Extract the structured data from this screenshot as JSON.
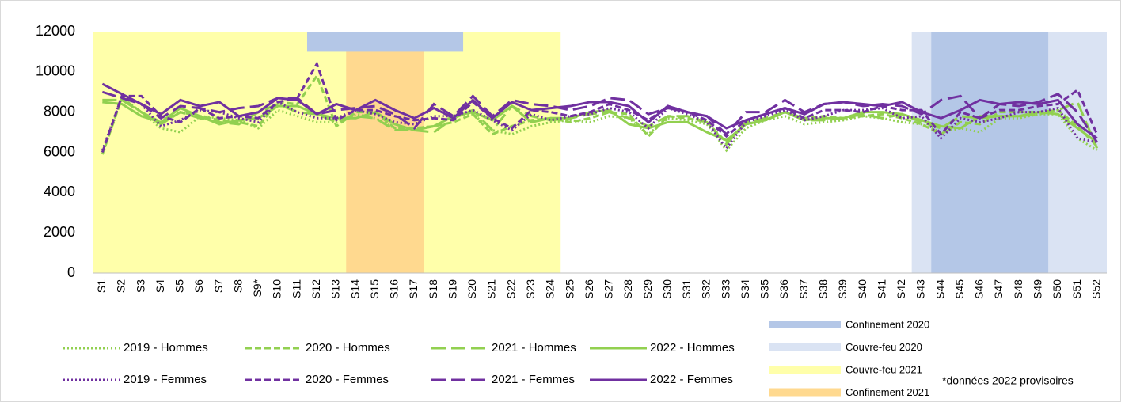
{
  "chart_data": {
    "type": "line",
    "categories": [
      "S1",
      "S2",
      "S3",
      "S4",
      "S5",
      "S6",
      "S7",
      "S8",
      "S9*",
      "S10",
      "S11",
      "S12",
      "S13",
      "S14",
      "S15",
      "S16",
      "S17",
      "S18",
      "S19",
      "S20",
      "S21",
      "S22",
      "S23",
      "S24",
      "S25",
      "S26",
      "S27",
      "S28",
      "S29",
      "S30",
      "S31",
      "S32",
      "S33",
      "S34",
      "S35",
      "S36",
      "S37",
      "S38",
      "S39",
      "S40",
      "S41",
      "S42",
      "S43",
      "S44",
      "S45",
      "S46",
      "S47",
      "S48",
      "S49",
      "S50",
      "S51",
      "S52"
    ],
    "ylim": [
      0,
      12000
    ],
    "yticks": [
      0,
      2000,
      4000,
      6000,
      8000,
      10000,
      12000
    ],
    "grid": false,
    "series": [
      {
        "name": "2019 - Hommes",
        "color": "#92d050",
        "style": "dotted",
        "values": [
          5900,
          8700,
          8000,
          7200,
          7000,
          7800,
          7700,
          7600,
          7200,
          8100,
          7800,
          7500,
          7500,
          7900,
          7700,
          7200,
          7200,
          7300,
          7800,
          7900,
          7100,
          6900,
          7300,
          7500,
          7600,
          7500,
          7800,
          7700,
          6900,
          7700,
          7600,
          7400,
          6100,
          7200,
          7600,
          7800,
          7400,
          7500,
          7600,
          7800,
          7700,
          7500,
          7400,
          7000,
          7200,
          7000,
          7700,
          7700,
          7900,
          7900,
          6700,
          6100
        ]
      },
      {
        "name": "2020 - Hommes",
        "color": "#92d050",
        "style": "dashed",
        "values": [
          5900,
          8700,
          8000,
          7500,
          8000,
          7800,
          7600,
          7500,
          7300,
          8500,
          8400,
          9800,
          7300,
          8000,
          8000,
          7200,
          7200,
          7300,
          7500,
          7900,
          6900,
          7300,
          7600,
          7700,
          7500,
          7700,
          8000,
          7900,
          6800,
          7800,
          7700,
          7500,
          6500,
          7400,
          7600,
          8000,
          7700,
          7800,
          7700,
          7800,
          7900,
          7700,
          7400,
          6900,
          7500,
          7400,
          8000,
          8000,
          8000,
          8100,
          7300,
          6300
        ]
      },
      {
        "name": "2021 - Hommes",
        "color": "#92d050",
        "style": "longdash",
        "values": [
          8600,
          8600,
          8000,
          7400,
          8000,
          7700,
          7500,
          7400,
          8000,
          8400,
          8000,
          7900,
          7500,
          7800,
          7700,
          7100,
          7100,
          7000,
          7700,
          8100,
          7100,
          8300,
          7800,
          7600,
          7700,
          7900,
          8000,
          7700,
          7300,
          7800,
          7800,
          7500,
          6400,
          7500,
          7700,
          8000,
          7600,
          7600,
          7700,
          7900,
          7700,
          7900,
          7500,
          7200,
          7800,
          7700,
          7800,
          7800,
          7900,
          8100,
          8500,
          6200
        ]
      },
      {
        "name": "2022 - Hommes",
        "color": "#92d050",
        "style": "solid",
        "values": [
          8500,
          8400,
          7800,
          7500,
          8200,
          7800,
          7400,
          7600,
          7700,
          8300,
          8300,
          7900,
          7700,
          7700,
          8000,
          7400,
          7100,
          7300,
          7800,
          8000,
          7600,
          8300,
          7500,
          7700,
          7700,
          8000,
          8100,
          7400,
          7200,
          7500,
          7500,
          7000,
          6600,
          7400,
          7600,
          8000,
          7600,
          7700,
          7700,
          8000,
          8000,
          7900,
          7600,
          7300,
          7200,
          7800,
          7800,
          7800,
          8000,
          7900,
          7200,
          6500
        ]
      },
      {
        "name": "2019 - Femmes",
        "color": "#7030a0",
        "style": "dotted",
        "values": [
          6100,
          8800,
          8400,
          7300,
          7600,
          8100,
          8000,
          7700,
          7500,
          8500,
          8000,
          7700,
          7700,
          8100,
          7900,
          7500,
          7400,
          7800,
          7800,
          8100,
          7600,
          7100,
          7900,
          7600,
          7800,
          7900,
          8200,
          8000,
          7200,
          8200,
          7900,
          7500,
          6200,
          7500,
          7800,
          8100,
          7600,
          7800,
          8100,
          8100,
          8200,
          7700,
          7800,
          6700,
          7700,
          7500,
          7700,
          8000,
          8000,
          8200,
          6700,
          6500
        ]
      },
      {
        "name": "2020 - Femmes",
        "color": "#7030a0",
        "style": "dashed",
        "values": [
          6000,
          8800,
          8800,
          7800,
          7500,
          8200,
          7700,
          7800,
          7700,
          8500,
          8700,
          10400,
          7600,
          8100,
          8100,
          7800,
          7600,
          7700,
          7600,
          8500,
          7700,
          7200,
          8100,
          8000,
          7800,
          8000,
          8400,
          8100,
          7600,
          8300,
          8000,
          7600,
          6800,
          7600,
          7900,
          8200,
          7700,
          8100,
          8100,
          8000,
          8300,
          8100,
          8100,
          6900,
          8000,
          7700,
          8100,
          8100,
          8300,
          8400,
          9100,
          6900
        ]
      },
      {
        "name": "2021 - Femmes",
        "color": "#7030a0",
        "style": "longdash",
        "values": [
          9000,
          8700,
          8400,
          7700,
          8300,
          8200,
          8000,
          8200,
          8300,
          8700,
          8700,
          7900,
          8100,
          8200,
          8300,
          7900,
          7200,
          8400,
          7800,
          8800,
          7800,
          8600,
          8400,
          8300,
          8100,
          8300,
          8700,
          8600,
          7900,
          8200,
          8000,
          7800,
          6900,
          8000,
          8000,
          8600,
          8000,
          8400,
          8500,
          8300,
          8400,
          8300,
          7900,
          8600,
          8800,
          7700,
          8400,
          8300,
          8500,
          8900,
          8000,
          6500
        ]
      },
      {
        "name": "2022 - Femmes",
        "color": "#7030a0",
        "style": "solid",
        "values": [
          9400,
          8900,
          8400,
          7900,
          8600,
          8300,
          8500,
          7800,
          8000,
          8700,
          8600,
          7900,
          8400,
          8100,
          8600,
          8100,
          7700,
          8200,
          7700,
          8600,
          7700,
          8500,
          8100,
          8200,
          8300,
          8500,
          8500,
          8300,
          7500,
          8300,
          8000,
          7800,
          7200,
          7600,
          7900,
          8200,
          7900,
          8400,
          8500,
          8400,
          8300,
          8500,
          8000,
          7700,
          8100,
          8600,
          8400,
          8500,
          8400,
          8600,
          7400,
          6700
        ]
      }
    ],
    "periods": [
      {
        "name": "Confinement 2020",
        "color": "#b4c7e7",
        "spans": [
          {
            "from": "S12",
            "to": "S19",
            "ymin": 11000
          },
          {
            "from": "S44",
            "to": "S49"
          }
        ]
      },
      {
        "name": "Couvre-feu 2020",
        "color": "#dae3f3",
        "spans": [
          {
            "from": "S43",
            "to": "S52"
          }
        ]
      },
      {
        "name": "Couvre-feu 2021",
        "color": "#ffffaa",
        "spans": [
          {
            "from": "S1",
            "to": "S24"
          }
        ]
      },
      {
        "name": "Confinement 2021",
        "color": "#ffd98f",
        "spans": [
          {
            "from": "S14",
            "to": "S17"
          }
        ]
      }
    ],
    "footnote": "*données 2022 provisoires"
  }
}
